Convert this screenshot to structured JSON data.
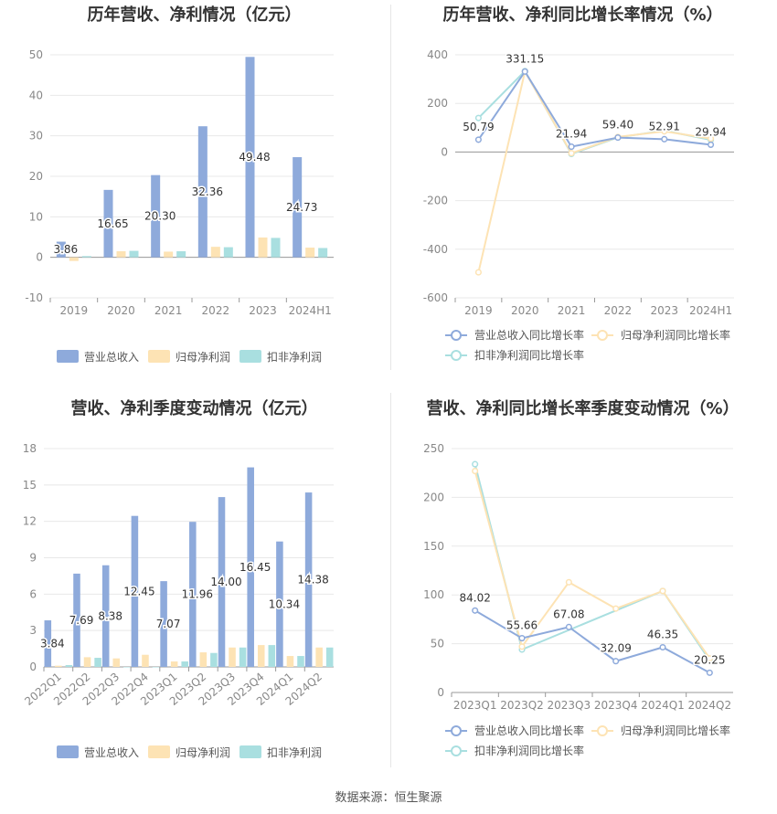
{
  "source_label": "数据来源：恒生聚源",
  "legend": {
    "revenue": "营业总收入",
    "net_profit": "归母净利润",
    "deducted": "扣非净利润",
    "revenue_growth": "营业总收入同比增长率",
    "net_profit_growth": "归母净利润同比增长率",
    "deducted_growth": "扣非净利润同比增长率"
  },
  "colors": {
    "revenue": "#8eaadb",
    "net_profit": "#fde3b4",
    "deducted": "#a9dfe0"
  },
  "chart_data": [
    {
      "type": "bar",
      "title": "历年营收、净利情况（亿元）",
      "categories": [
        "2019",
        "2020",
        "2021",
        "2022",
        "2023",
        "2024H1"
      ],
      "ylim": [
        -10,
        50
      ],
      "yticks": [
        -10,
        0,
        10,
        20,
        30,
        40,
        50
      ],
      "series": [
        {
          "name": "营业总收入",
          "values": [
            3.86,
            16.65,
            20.3,
            32.36,
            49.48,
            24.73
          ],
          "labels": [
            "3.86",
            "16.65",
            "20.30",
            "32.36",
            "49.48",
            "24.73"
          ]
        },
        {
          "name": "归母净利润",
          "values": [
            -0.9,
            1.5,
            1.4,
            2.6,
            4.9,
            2.4
          ]
        },
        {
          "name": "扣非净利润",
          "values": [
            0.3,
            1.6,
            1.5,
            2.5,
            4.8,
            2.3
          ]
        }
      ]
    },
    {
      "type": "line",
      "title": "历年营收、净利同比增长率情况（%）",
      "categories": [
        "2019",
        "2020",
        "2021",
        "2022",
        "2023",
        "2024H1"
      ],
      "ylim": [
        -600,
        400
      ],
      "yticks": [
        -600,
        -400,
        -200,
        0,
        200,
        400
      ],
      "series": [
        {
          "name": "营业总收入同比增长率",
          "values": [
            50.79,
            331.15,
            21.94,
            59.4,
            52.91,
            29.94
          ],
          "labels": [
            "50.79",
            "331.15",
            "21.94",
            "59.40",
            "52.91",
            "29.94"
          ]
        },
        {
          "name": "归母净利润同比增长率",
          "values": [
            -495,
            331,
            -5,
            62,
            85,
            55
          ]
        },
        {
          "name": "扣非净利润同比增长率",
          "values": [
            140,
            333,
            -8,
            60,
            88,
            50
          ]
        }
      ]
    },
    {
      "type": "bar",
      "title": "营收、净利季度变动情况（亿元）",
      "categories": [
        "2022Q1",
        "2022Q2",
        "2022Q3",
        "2022Q4",
        "2023Q1",
        "2023Q2",
        "2023Q3",
        "2023Q4",
        "2024Q1",
        "2024Q2"
      ],
      "ylim": [
        0,
        18
      ],
      "yticks": [
        0,
        3,
        6,
        9,
        12,
        15,
        18
      ],
      "series": [
        {
          "name": "营业总收入",
          "values": [
            3.84,
            7.69,
            8.38,
            12.45,
            7.07,
            11.96,
            14.0,
            16.45,
            10.34,
            14.38
          ],
          "labels": [
            "3.84",
            "7.69",
            "8.38",
            "12.45",
            "7.07",
            "11.96",
            "14.00",
            "16.45",
            "10.34",
            "14.38"
          ]
        },
        {
          "name": "归母净利润",
          "values": [
            0.1,
            0.8,
            0.7,
            1.0,
            0.45,
            1.2,
            1.6,
            1.8,
            0.9,
            1.6
          ]
        },
        {
          "name": "扣非净利润",
          "values": [
            0.15,
            0.75,
            0.0,
            0.0,
            0.45,
            1.15,
            1.6,
            1.8,
            0.9,
            1.6
          ]
        }
      ]
    },
    {
      "type": "line",
      "title": "营收、净利同比增长率季度变动情况（%）",
      "categories": [
        "2023Q1",
        "2023Q2",
        "2023Q3",
        "2023Q4",
        "2024Q1",
        "2024Q2"
      ],
      "ylim": [
        0,
        250
      ],
      "yticks": [
        0,
        50,
        100,
        150,
        200,
        250
      ],
      "series": [
        {
          "name": "营业总收入同比增长率",
          "values": [
            84.02,
            55.66,
            67.08,
            32.09,
            46.35,
            20.25
          ],
          "labels": [
            "84.02",
            "55.66",
            "67.08",
            "32.09",
            "46.35",
            "20.25"
          ]
        },
        {
          "name": "归母净利润同比增长率",
          "values": [
            227,
            47,
            113,
            86,
            104,
            35
          ]
        },
        {
          "name": "扣非净利润同比增长率",
          "values": [
            234,
            44,
            null,
            null,
            104,
            33
          ]
        }
      ]
    }
  ]
}
